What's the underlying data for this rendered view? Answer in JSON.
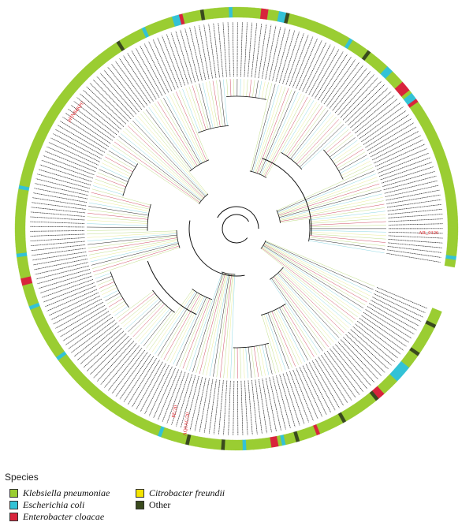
{
  "legend": {
    "title": "Species",
    "items": [
      {
        "key": "kp",
        "label": "Klebsiella pneumoniae",
        "color": "#9acd32",
        "italic": true
      },
      {
        "key": "ec",
        "label": "Escherichia coli",
        "color": "#33c2d6",
        "italic": true
      },
      {
        "key": "ecl",
        "label": "Enterobacter cloacae",
        "color": "#d8243c",
        "italic": true
      },
      {
        "key": "cf",
        "label": "Citrobacter freundii",
        "color": "#f4e400",
        "italic": true
      },
      {
        "key": "other",
        "label": "Other",
        "color": "#3a4a1e",
        "italic": false
      }
    ]
  },
  "highlight_labels": [
    {
      "text": "pHN84KPC",
      "color": "#e0191f"
    },
    {
      "text": "AR_0126",
      "color": "#e0191f"
    },
    {
      "text": "PE/20",
      "color": "#e0191f"
    },
    {
      "text": "AQ0AC/20",
      "color": "#e0191f"
    }
  ],
  "tip_label_color": "#111111",
  "branch_color": "#111111",
  "ring_pattern": "kkkkokkkkkkkkokkkkeeeeekkkkkllokkkkkkkkkkokkkkkkklkkkkkokkkekllkkkkkkkekkkkkokkkkkkkkkokkkkkkkekkkkkkkkkkkkkkkkkkkkkkkkkkkkkkkkkkkekkkkkkkkkkkkkkkekkkkkkllkkkkkkekkkkkkkkkkkkkkkkkkekkkkkkkkkkkkkkkkkkkkkkkkkkkkkkkkkkkkkkkkkkkkkkkkkokkkkkkkekkkkkkkkeelkkkkkokkkkkkkekkkkkkkkllkkkeeokkkkkkkkkkkkkkkkkkekkkkkokkkkkkeekkkklllkeelkkkkkkkkkkkkkkkkkkkkkkkkkkkkkkkkkkkkkkkkkkkkkekk"
}
